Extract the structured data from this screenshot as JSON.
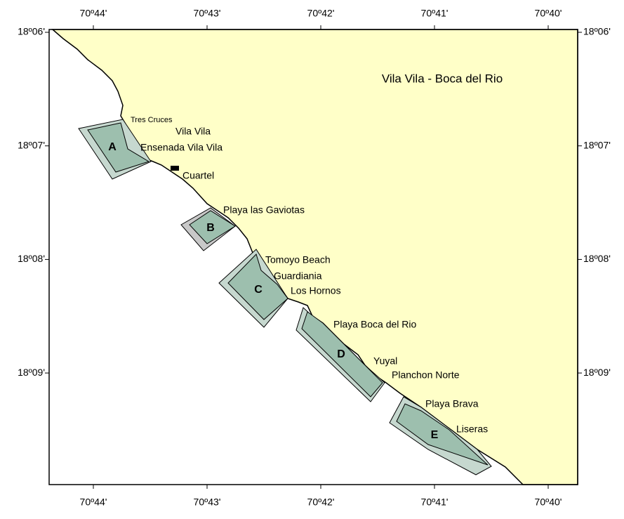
{
  "title": "Vila Vila - Boca del Rio",
  "longitude_labels": [
    "70º44'",
    "70º43'",
    "70º42'",
    "70º41'",
    "70º40'"
  ],
  "latitude_labels": [
    "18º06'",
    "18º07'",
    "18º08'",
    "18º09'"
  ],
  "places": [
    "Tres Cruces",
    "Vila Vila",
    "Ensenada Vila Vila",
    "Cuartel",
    "Playa las Gaviotas",
    "Tomoyo Beach",
    "Guardiania",
    "Los Hornos",
    "Playa Boca del Rio",
    "Yuyal",
    "Planchon Norte",
    "Playa Brava",
    "Liseras"
  ],
  "zones": [
    "A",
    "B",
    "C",
    "D",
    "E"
  ]
}
